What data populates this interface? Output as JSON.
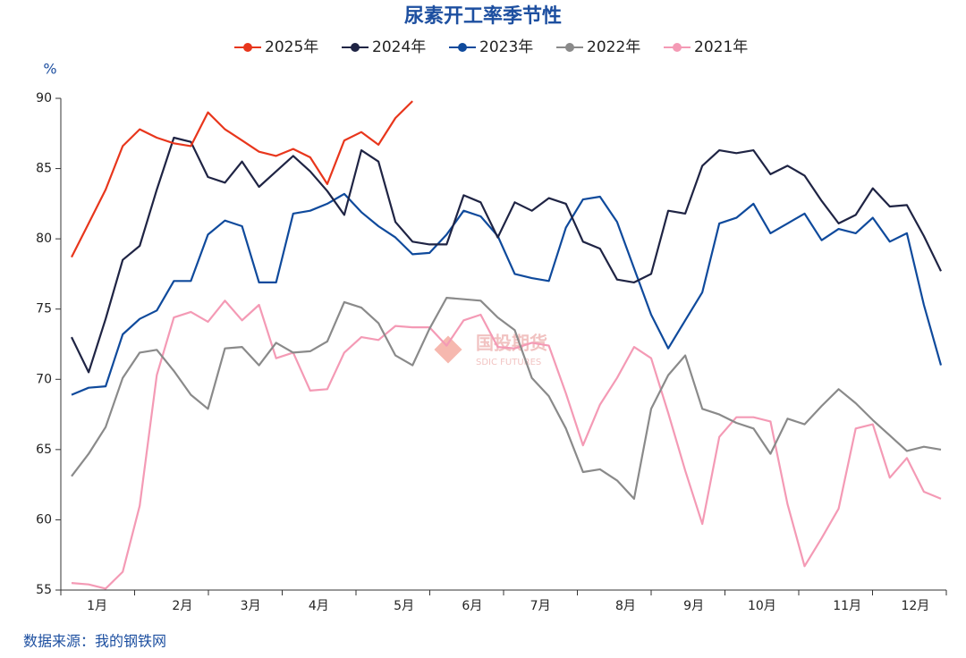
{
  "chart_data": {
    "type": "line",
    "title": "尿素开工率季节性",
    "y_unit": "%",
    "source": "数据来源：我的钢铁网",
    "watermark": {
      "name": "国投期货",
      "subtitle": "SDIC FUTURES"
    },
    "categories": [
      null,
      "1月",
      null,
      null,
      null,
      null,
      "2月",
      null,
      null,
      null,
      "3月",
      null,
      null,
      null,
      "4月",
      null,
      null,
      null,
      null,
      "5月",
      null,
      null,
      null,
      "6月",
      null,
      null,
      null,
      "7月",
      null,
      null,
      null,
      null,
      "8月",
      null,
      null,
      null,
      "9月",
      null,
      null,
      null,
      "10月",
      null,
      null,
      null,
      null,
      "11月",
      null,
      null,
      null,
      "12月",
      null,
      null
    ],
    "ylim": [
      55,
      90
    ],
    "yticks": [
      55,
      60,
      65,
      70,
      75,
      80,
      85,
      90
    ],
    "grid": false,
    "legend": "top",
    "series": [
      {
        "name": "2025年",
        "color": "#e8361c",
        "values": [
          78.7,
          81.1,
          83.5,
          86.6,
          87.8,
          87.2,
          86.8,
          86.6,
          89.0,
          87.8,
          87.0,
          86.2,
          85.9,
          86.4,
          85.8,
          83.9,
          87.0,
          87.6,
          86.7,
          88.6,
          89.8,
          null,
          null,
          null,
          null,
          null,
          null,
          null,
          null,
          null,
          null,
          null,
          null,
          null,
          null,
          null,
          null,
          null,
          null,
          null,
          null,
          null,
          null,
          null,
          null,
          null,
          null,
          null,
          null,
          null,
          null,
          null
        ]
      },
      {
        "name": "2024年",
        "color": "#1f2444",
        "values": [
          73.0,
          70.5,
          74.3,
          78.5,
          79.5,
          83.5,
          87.2,
          86.9,
          84.4,
          84.0,
          85.5,
          83.7,
          84.8,
          85.9,
          84.8,
          83.4,
          81.7,
          86.3,
          85.5,
          81.2,
          79.8,
          79.6,
          79.6,
          83.1,
          82.6,
          80.1,
          82.6,
          82.0,
          82.9,
          82.5,
          79.8,
          79.3,
          77.1,
          76.9,
          77.5,
          82.0,
          81.8,
          85.2,
          86.3,
          86.1,
          86.3,
          84.6,
          85.2,
          84.5,
          82.7,
          81.1,
          81.7,
          83.6,
          82.3,
          82.4,
          80.2,
          77.7
        ]
      },
      {
        "name": "2023年",
        "color": "#0f4a9c",
        "values": [
          68.9,
          69.4,
          69.5,
          73.2,
          74.3,
          74.9,
          77.0,
          77.0,
          80.3,
          81.3,
          80.9,
          76.9,
          76.9,
          81.8,
          82.0,
          82.5,
          83.2,
          81.9,
          80.9,
          80.1,
          78.9,
          79.0,
          80.3,
          82.0,
          81.6,
          80.2,
          77.5,
          77.2,
          77.0,
          80.8,
          82.8,
          83.0,
          81.2,
          77.9,
          74.6,
          72.2,
          74.2,
          76.2,
          81.1,
          81.5,
          82.5,
          80.4,
          81.1,
          81.8,
          79.9,
          80.7,
          80.4,
          81.5,
          79.8,
          80.4,
          75.3,
          71.0
        ]
      },
      {
        "name": "2022年",
        "color": "#8a8a8a",
        "values": [
          63.1,
          64.7,
          66.6,
          70.1,
          71.9,
          72.1,
          70.6,
          68.9,
          67.9,
          72.2,
          72.3,
          71.0,
          72.6,
          71.9,
          72.0,
          72.7,
          75.5,
          75.1,
          74.0,
          71.7,
          71.0,
          73.6,
          75.8,
          75.7,
          75.6,
          74.4,
          73.5,
          70.1,
          68.8,
          66.5,
          63.4,
          63.6,
          62.8,
          61.5,
          67.9,
          70.3,
          71.7,
          67.9,
          67.5,
          66.9,
          66.5,
          64.7,
          67.2,
          66.8,
          68.1,
          69.3,
          68.3,
          67.1,
          66.0,
          64.9,
          65.2,
          65.0
        ]
      },
      {
        "name": "2021年",
        "color": "#f49ab5",
        "values": [
          55.5,
          55.4,
          55.1,
          56.3,
          61.0,
          70.3,
          74.4,
          74.8,
          74.1,
          75.6,
          74.2,
          75.3,
          71.5,
          71.9,
          69.2,
          69.3,
          71.9,
          73.0,
          72.8,
          73.8,
          73.7,
          73.7,
          72.4,
          74.2,
          74.6,
          72.3,
          72.2,
          72.6,
          72.4,
          69.0,
          65.3,
          68.2,
          70.1,
          72.3,
          71.5,
          67.6,
          63.5,
          59.7,
          65.9,
          67.3,
          67.3,
          67.0,
          61.1,
          56.7,
          58.7,
          60.8,
          66.5,
          66.8,
          63.0,
          64.4,
          62.0,
          61.5
        ]
      }
    ]
  }
}
